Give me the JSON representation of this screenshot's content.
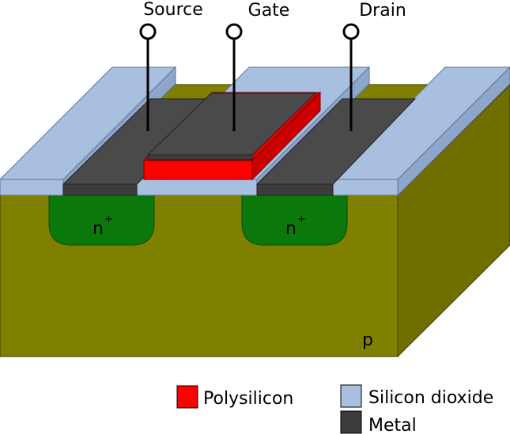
{
  "terminals": {
    "source": "Source",
    "gate": "Gate",
    "drain": "Drain"
  },
  "regions": {
    "left_doping": "n",
    "left_doping_sup": "+",
    "right_doping": "n",
    "right_doping_sup": "+",
    "substrate": "p"
  },
  "legend": {
    "items": [
      {
        "label": "Polysilicon",
        "color": "#ff0000"
      },
      {
        "label": "Silicon dioxide",
        "color": "#a8bfe0"
      },
      {
        "label": "Metal",
        "color": "#3c3c3c"
      }
    ]
  },
  "colors": {
    "substrate_front": "#808000",
    "substrate_top": "#7a7a00",
    "substrate_side": "#6f6f00",
    "n_plus": "#0a780a",
    "oxide": "#a8bfe0",
    "oxide_dark": "#8ea6cc",
    "metal": "#4a4a4a",
    "metal_dark": "#333333",
    "poly": "#ff0000",
    "poly_dark": "#cc0000"
  }
}
